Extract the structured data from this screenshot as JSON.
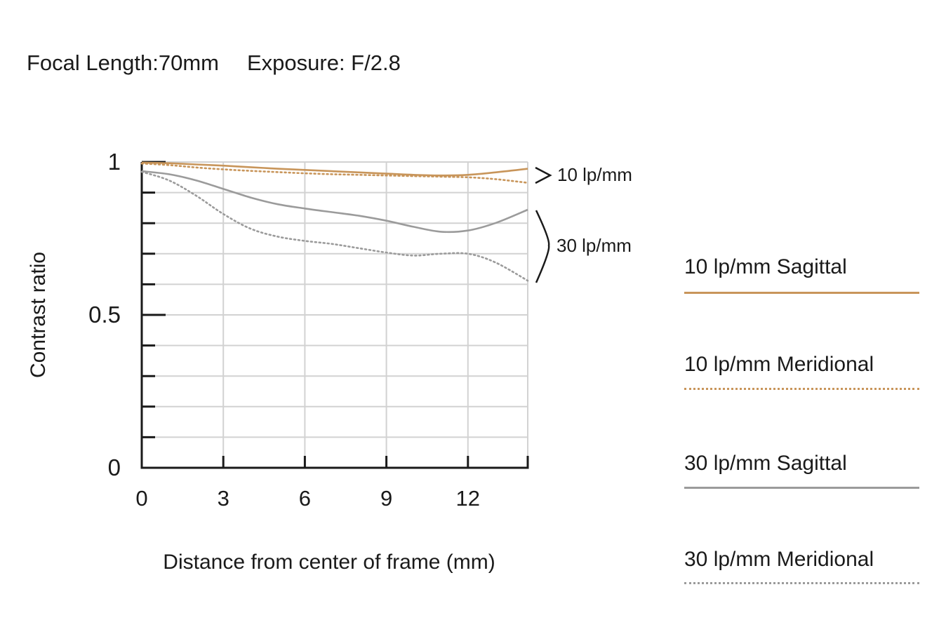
{
  "header": {
    "focal_length": "Focal Length:70mm",
    "exposure": "Exposure: F/2.8"
  },
  "chart_data": {
    "type": "line",
    "xlabel": "Distance from center of frame (mm)",
    "ylabel": "Contrast ratio",
    "xlim": [
      0,
      14.2
    ],
    "ylim": [
      0,
      1
    ],
    "x_ticks": [
      0,
      3,
      6,
      9,
      12
    ],
    "y_tick_labels": [
      {
        "value": 1,
        "label": "1"
      },
      {
        "value": 0.5,
        "label": "0.5"
      },
      {
        "value": 0,
        "label": "0"
      }
    ],
    "grid": true,
    "group_labels": [
      {
        "text": "10 lp/mm",
        "series": [
          "10 lp/mm Sagittal",
          "10 lp/mm Meridional"
        ]
      },
      {
        "text": "30 lp/mm",
        "series": [
          "30 lp/mm Sagittal",
          "30 lp/mm Meridional"
        ]
      }
    ],
    "series": [
      {
        "name": "10 lp/mm Sagittal",
        "color": "#c8955a",
        "style": "solid",
        "x": [
          0,
          1,
          2,
          3,
          4,
          5,
          6,
          7,
          8,
          9,
          10,
          11,
          12,
          13,
          14.2
        ],
        "y": [
          0.998,
          0.996,
          0.992,
          0.988,
          0.983,
          0.978,
          0.974,
          0.97,
          0.966,
          0.962,
          0.958,
          0.956,
          0.958,
          0.966,
          0.978
        ]
      },
      {
        "name": "10 lp/mm Meridional",
        "color": "#c8955a",
        "style": "dotted",
        "x": [
          0,
          1,
          2,
          3,
          4,
          5,
          6,
          7,
          8,
          9,
          10,
          11,
          12,
          13,
          14.2
        ],
        "y": [
          0.995,
          0.99,
          0.982,
          0.976,
          0.971,
          0.967,
          0.963,
          0.96,
          0.958,
          0.956,
          0.954,
          0.952,
          0.95,
          0.944,
          0.932
        ]
      },
      {
        "name": "30 lp/mm Sagittal",
        "color": "#9b9b9b",
        "style": "solid",
        "x": [
          0,
          1,
          2,
          3,
          4,
          5,
          6,
          7,
          8,
          9,
          10,
          11,
          12,
          13,
          14.2
        ],
        "y": [
          0.97,
          0.96,
          0.94,
          0.912,
          0.884,
          0.862,
          0.848,
          0.836,
          0.824,
          0.808,
          0.788,
          0.772,
          0.776,
          0.8,
          0.844
        ]
      },
      {
        "name": "30 lp/mm Meridional",
        "color": "#9b9b9b",
        "style": "dotted",
        "x": [
          0,
          1,
          2,
          3,
          4,
          5,
          6,
          7,
          8,
          9,
          10,
          11,
          12,
          13,
          14.2
        ],
        "y": [
          0.968,
          0.94,
          0.89,
          0.83,
          0.782,
          0.756,
          0.742,
          0.732,
          0.718,
          0.704,
          0.694,
          0.7,
          0.7,
          0.672,
          0.612
        ]
      }
    ]
  },
  "legend": {
    "items": [
      {
        "label": "10 lp/mm Sagittal",
        "color": "#c8955a",
        "style": "solid"
      },
      {
        "label": "10 lp/mm Meridional",
        "color": "#c8955a",
        "style": "dotted"
      },
      {
        "label": "30 lp/mm Sagittal",
        "color": "#9b9b9b",
        "style": "solid"
      },
      {
        "label": "30 lp/mm Meridional",
        "color": "#9b9b9b",
        "style": "dotted"
      }
    ]
  }
}
